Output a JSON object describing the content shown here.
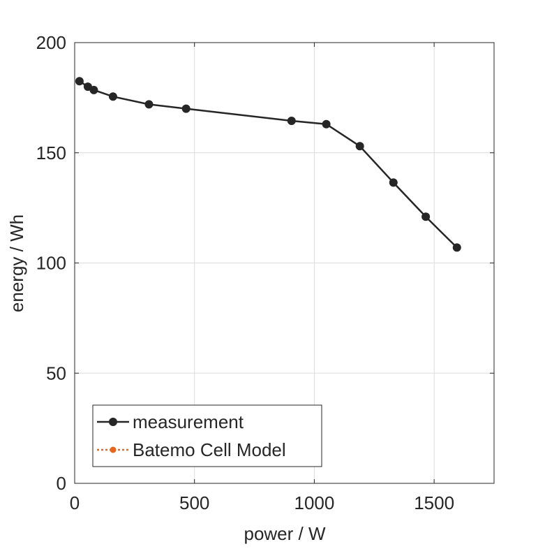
{
  "chart_data": {
    "type": "line",
    "xlabel": "power / W",
    "ylabel": "energy / Wh",
    "xlim": [
      0,
      1750
    ],
    "ylim": [
      0,
      200
    ],
    "xticks": [
      0,
      500,
      1000,
      1500
    ],
    "yticks": [
      0,
      50,
      100,
      150,
      200
    ],
    "grid": true,
    "legend_position": "bottom-left",
    "series": [
      {
        "name": "measurement",
        "color": "#262626",
        "marker": "circle",
        "line_style": "solid",
        "x": [
          20,
          55,
          80,
          160,
          310,
          465,
          905,
          1050,
          1190,
          1330,
          1465,
          1595
        ],
        "y": [
          182.5,
          180,
          178.5,
          175.5,
          172,
          170,
          164.5,
          163,
          153,
          136.5,
          121,
          107
        ]
      },
      {
        "name": "Batemo Cell Model",
        "color": "#e8661a",
        "marker": "circle",
        "line_style": "dotted",
        "x": [],
        "y": []
      }
    ]
  }
}
